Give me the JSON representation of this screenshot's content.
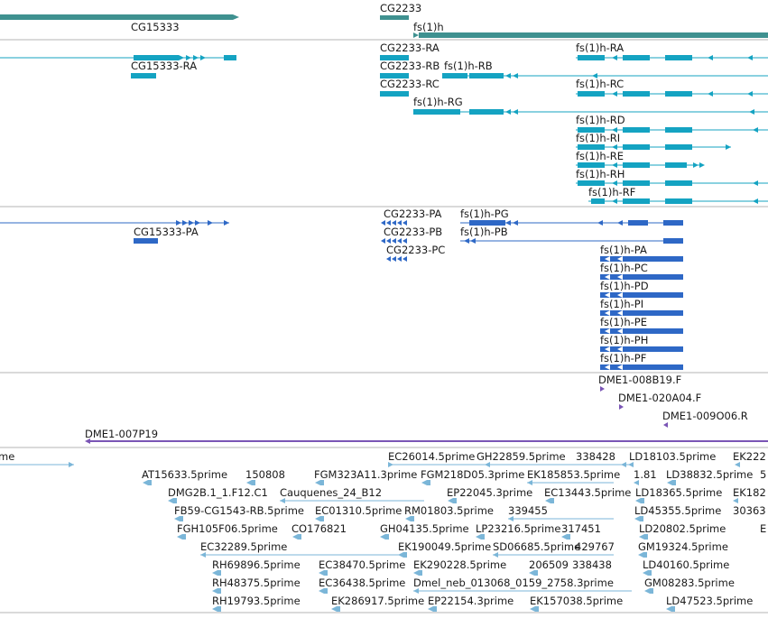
{
  "colors": {
    "gene": "#3f9190",
    "mrna": "#14a3c2",
    "cds": "#2e68c6",
    "clone": "#7a55b5",
    "est": "#7bb6d8",
    "divider": "#b5b5b5"
  },
  "genes": [
    "CG2233",
    "CG15333",
    "fs(1)h"
  ],
  "mrna_labels": [
    "CG2233-RA",
    "CG15333-RA",
    "fs(1)h-RA",
    "CG2233-RB",
    "fs(1)h-RB",
    "CG2233-RC",
    "fs(1)h-RC",
    "fs(1)h-RG",
    "fs(1)h-RD",
    "fs(1)h-RI",
    "fs(1)h-RE",
    "fs(1)h-RH",
    "fs(1)h-RF"
  ],
  "protein_labels": [
    "CG2233-PA",
    "fs(1)h-PG",
    "CG15333-PA",
    "CG2233-PB",
    "fs(1)h-PB",
    "CG2233-PC",
    "fs(1)h-PA",
    "fs(1)h-PC",
    "fs(1)h-PD",
    "fs(1)h-PI",
    "fs(1)h-PE",
    "fs(1)h-PH",
    "fs(1)h-PF"
  ],
  "clone_labels": [
    "DME1-008B19.F",
    "DME1-020A04.F",
    "DME1-009O06.R",
    "DME1-007P19"
  ],
  "est_labels": [
    "me",
    "EC26014.5prime",
    "GH22859.5prime",
    "338428",
    "LD18103.5prime",
    "EK222",
    "AT15633.5prime",
    "150808",
    "FGM323A11.3prime",
    "FGM218D05.3prime",
    "EK185853.5prime",
    "1.81",
    "LD38832.5prime",
    "5",
    "DMG2B.1_1.F12.C1",
    "Cauquenes_24_B12",
    "EP22045.3prime",
    "EC13443.5prime",
    "LD18365.5prime",
    "EK182",
    "FB59-CG1543-RB.5prime",
    "EC01310.5prime",
    "RM01803.5prime",
    "339455",
    "LD45355.5prime",
    "30363",
    "FGH105F06.5prime",
    "CO176821",
    "GH04135.5prime",
    "LP23216.5prime",
    "317451",
    "LD20802.5prime",
    "E",
    "EC32289.5prime",
    "EK190049.5prime",
    "SD06685.5prime",
    "429767",
    "GM19324.5prime",
    "RH69896.5prime",
    "EC38470.5prime",
    "EK290228.5prime",
    "206509",
    "338438",
    "LD40160.5prime",
    "RH48375.5prime",
    "EC36438.5prime",
    "Dmel_neb_013068_0159_2758.3prime",
    "GM08283.5prime",
    "RH19793.5prime",
    "EK286917.5prime",
    "EP22154.3prime",
    "EK157038.5prime",
    "LD47523.5prime"
  ]
}
